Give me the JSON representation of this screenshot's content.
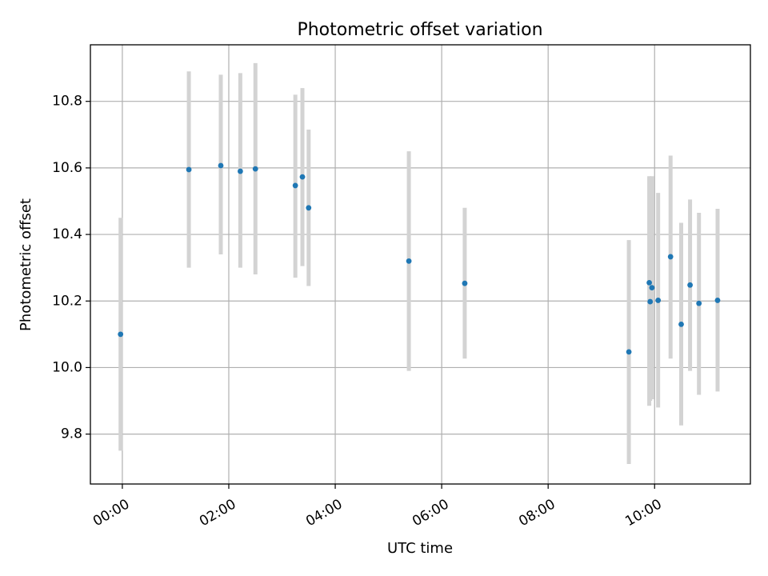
{
  "chart_data": {
    "type": "scatter",
    "title": "Photometric offset variation",
    "xlabel": "UTC time",
    "ylabel": "Photometric offset",
    "x_unit": "hours UTC",
    "xlim": [
      "-00:36",
      "11:48"
    ],
    "ylim": [
      9.65,
      10.97
    ],
    "grid": true,
    "x_ticks": [
      {
        "value": "00:00",
        "label": "00:00"
      },
      {
        "value": "02:00",
        "label": "02:00"
      },
      {
        "value": "04:00",
        "label": "04:00"
      },
      {
        "value": "06:00",
        "label": "06:00"
      },
      {
        "value": "08:00",
        "label": "08:00"
      },
      {
        "value": "10:00",
        "label": "10:00"
      }
    ],
    "y_ticks": [
      {
        "value": 9.8,
        "label": "9.8"
      },
      {
        "value": 10.0,
        "label": "10.0"
      },
      {
        "value": 10.2,
        "label": "10.2"
      },
      {
        "value": 10.4,
        "label": "10.4"
      },
      {
        "value": 10.6,
        "label": "10.6"
      },
      {
        "value": 10.8,
        "label": "10.8"
      }
    ],
    "marker_color": "#1f77b4",
    "errorbar_color": "#d3d3d3",
    "points": [
      {
        "x": "-00:02",
        "y": 10.1,
        "err_low": 9.75,
        "err_high": 10.45
      },
      {
        "x": "01:15",
        "y": 10.595,
        "err_low": 10.3,
        "err_high": 10.89
      },
      {
        "x": "01:51",
        "y": 10.607,
        "err_low": 10.34,
        "err_high": 10.88
      },
      {
        "x": "02:13",
        "y": 10.59,
        "err_low": 10.3,
        "err_high": 10.885
      },
      {
        "x": "02:30",
        "y": 10.597,
        "err_low": 10.28,
        "err_high": 10.915
      },
      {
        "x": "03:15",
        "y": 10.547,
        "err_low": 10.27,
        "err_high": 10.82
      },
      {
        "x": "03:23",
        "y": 10.573,
        "err_low": 10.305,
        "err_high": 10.84
      },
      {
        "x": "03:30",
        "y": 10.48,
        "err_low": 10.245,
        "err_high": 10.715
      },
      {
        "x": "05:23",
        "y": 10.32,
        "err_low": 9.99,
        "err_high": 10.65
      },
      {
        "x": "06:26",
        "y": 10.253,
        "err_low": 10.027,
        "err_high": 10.48
      },
      {
        "x": "09:31",
        "y": 10.047,
        "err_low": 9.71,
        "err_high": 10.383
      },
      {
        "x": "09:54",
        "y": 10.255,
        "err_low": 9.885,
        "err_high": 10.575
      },
      {
        "x": "09:55",
        "y": 10.198,
        "err_low": 9.9,
        "err_high": 10.57
      },
      {
        "x": "09:57",
        "y": 10.24,
        "err_low": 9.905,
        "err_high": 10.575
      },
      {
        "x": "10:04",
        "y": 10.202,
        "err_low": 9.88,
        "err_high": 10.525
      },
      {
        "x": "10:18",
        "y": 10.333,
        "err_low": 10.027,
        "err_high": 10.637
      },
      {
        "x": "10:30",
        "y": 10.13,
        "err_low": 9.826,
        "err_high": 10.435
      },
      {
        "x": "10:40",
        "y": 10.248,
        "err_low": 9.99,
        "err_high": 10.505
      },
      {
        "x": "10:50",
        "y": 10.193,
        "err_low": 9.918,
        "err_high": 10.465
      },
      {
        "x": "11:11",
        "y": 10.202,
        "err_low": 9.928,
        "err_high": 10.477
      }
    ]
  }
}
